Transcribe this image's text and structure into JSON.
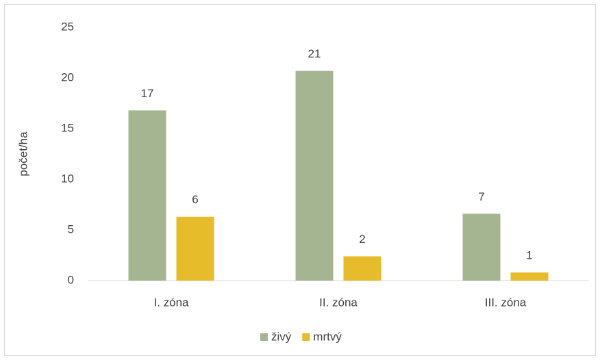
{
  "chart_data": {
    "type": "bar",
    "y_label": "počet/ha",
    "categories": [
      "I. zóna",
      "II. zóna",
      "III. zóna"
    ],
    "series": [
      {
        "name": "živý",
        "color": "#a5b592",
        "values": [
          16.8,
          20.7,
          6.6
        ],
        "value_labels": [
          "17",
          "21",
          "7"
        ]
      },
      {
        "name": "mrtvý",
        "color": "#e6bc2a",
        "values": [
          6.3,
          2.4,
          0.8
        ],
        "value_labels": [
          "6",
          "2",
          "1"
        ]
      }
    ],
    "ylim": [
      0,
      25
    ],
    "yticks": [
      0,
      5,
      10,
      15,
      20,
      25
    ],
    "grid": false,
    "legend": "bottom"
  }
}
